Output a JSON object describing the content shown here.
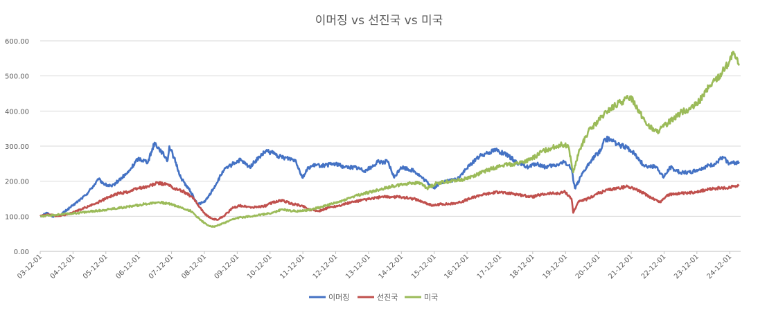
{
  "chart_data": {
    "type": "line",
    "title": "이머징 vs 선진국 vs 미국",
    "xlabel": "",
    "ylabel": "",
    "ylim": [
      0,
      600
    ],
    "y_ticks": [
      "0.00",
      "100.00",
      "200.00",
      "300.00",
      "400.00",
      "500.00",
      "600.00"
    ],
    "x_ticks": [
      "03-12-01",
      "04-12-01",
      "05-12-01",
      "06-12-01",
      "07-12-01",
      "08-12-01",
      "09-12-01",
      "10-12-01",
      "11-12-01",
      "12-12-01",
      "13-12-01",
      "14-12-01",
      "15-12-01",
      "16-12-01",
      "17-12-01",
      "18-12-01",
      "19-12-01",
      "20-12-01",
      "21-12-01",
      "22-12-01",
      "23-12-01",
      "24-12-01"
    ],
    "grid": true,
    "legend_position": "bottom",
    "x_range": [
      2003.917,
      2025.25
    ],
    "series": [
      {
        "name": "이머징",
        "color": "#4472C4",
        "x": [
          2003.92,
          2004.1,
          2004.3,
          2004.5,
          2004.9,
          2005.3,
          2005.7,
          2005.9,
          2006.1,
          2006.4,
          2006.6,
          2006.9,
          2007.2,
          2007.4,
          2007.6,
          2007.8,
          2007.85,
          2008.0,
          2008.2,
          2008.5,
          2008.7,
          2008.9,
          2009.0,
          2009.2,
          2009.5,
          2009.8,
          2010.0,
          2010.3,
          2010.6,
          2010.8,
          2011.0,
          2011.2,
          2011.5,
          2011.7,
          2011.9,
          2012.1,
          2012.3,
          2012.6,
          2012.9,
          2013.2,
          2013.5,
          2013.8,
          2014.0,
          2014.2,
          2014.5,
          2014.7,
          2014.9,
          2015.3,
          2015.6,
          2015.9,
          2016.1,
          2016.3,
          2016.6,
          2016.9,
          2017.2,
          2017.5,
          2017.8,
          2018.0,
          2018.2,
          2018.5,
          2018.8,
          2019.0,
          2019.3,
          2019.6,
          2019.9,
          2020.1,
          2020.2,
          2020.4,
          2020.7,
          2021.0,
          2021.1,
          2021.3,
          2021.5,
          2021.8,
          2022.0,
          2022.3,
          2022.7,
          2022.9,
          2023.1,
          2023.4,
          2023.7,
          2024.0,
          2024.3,
          2024.5,
          2024.7,
          2024.9,
          2025.2
        ],
        "values": [
          100,
          110,
          100,
          102,
          130,
          160,
          205,
          190,
          185,
          210,
          225,
          265,
          255,
          310,
          285,
          260,
          300,
          265,
          210,
          170,
          135,
          140,
          150,
          180,
          230,
          250,
          260,
          240,
          270,
          285,
          280,
          270,
          265,
          260,
          210,
          240,
          245,
          245,
          250,
          240,
          240,
          230,
          240,
          255,
          255,
          210,
          240,
          230,
          205,
          180,
          195,
          200,
          205,
          235,
          265,
          280,
          290,
          280,
          270,
          250,
          240,
          250,
          240,
          245,
          255,
          235,
          180,
          215,
          260,
          290,
          320,
          320,
          305,
          295,
          280,
          245,
          240,
          210,
          240,
          225,
          225,
          235,
          245,
          250,
          270,
          250,
          255
        ]
      },
      {
        "name": "선진국",
        "color": "#C0504D",
        "x": [
          2003.92,
          2004.2,
          2004.4,
          2004.6,
          2004.9,
          2005.3,
          2005.7,
          2006.0,
          2006.3,
          2006.6,
          2006.9,
          2007.2,
          2007.5,
          2007.8,
          2008.0,
          2008.3,
          2008.6,
          2008.9,
          2009.1,
          2009.3,
          2009.5,
          2009.8,
          2010.0,
          2010.4,
          2010.8,
          2011.0,
          2011.3,
          2011.6,
          2011.9,
          2012.1,
          2012.4,
          2012.7,
          2013.0,
          2013.4,
          2013.7,
          2014.0,
          2014.3,
          2014.6,
          2014.9,
          2015.3,
          2015.6,
          2015.9,
          2016.1,
          2016.4,
          2016.7,
          2017.0,
          2017.3,
          2017.6,
          2017.9,
          2018.1,
          2018.3,
          2018.6,
          2018.9,
          2019.1,
          2019.4,
          2019.7,
          2019.9,
          2020.1,
          2020.15,
          2020.3,
          2020.6,
          2020.9,
          2021.2,
          2021.5,
          2021.8,
          2022.0,
          2022.3,
          2022.6,
          2022.8,
          2023.0,
          2023.3,
          2023.6,
          2023.9,
          2024.2,
          2024.5,
          2024.8,
          2025.0,
          2025.2
        ],
        "values": [
          100,
          105,
          100,
          103,
          110,
          125,
          140,
          155,
          165,
          170,
          180,
          185,
          195,
          190,
          180,
          170,
          150,
          110,
          95,
          90,
          100,
          125,
          130,
          125,
          130,
          140,
          145,
          135,
          130,
          120,
          115,
          125,
          130,
          140,
          145,
          150,
          155,
          155,
          155,
          150,
          140,
          130,
          135,
          135,
          140,
          150,
          160,
          165,
          170,
          165,
          165,
          160,
          155,
          160,
          165,
          165,
          170,
          150,
          110,
          140,
          150,
          165,
          175,
          180,
          185,
          180,
          165,
          150,
          140,
          160,
          165,
          165,
          170,
          175,
          180,
          180,
          185,
          190
        ]
      },
      {
        "name": "미국",
        "color": "#9BBB59",
        "x": [
          2003.92,
          2004.2,
          2004.5,
          2004.9,
          2005.3,
          2005.7,
          2006.0,
          2006.4,
          2006.8,
          2007.1,
          2007.5,
          2007.9,
          2008.2,
          2008.5,
          2008.8,
          2009.0,
          2009.2,
          2009.5,
          2009.9,
          2010.3,
          2010.7,
          2011.0,
          2011.3,
          2011.6,
          2011.9,
          2012.2,
          2012.6,
          2013.0,
          2013.4,
          2013.8,
          2014.2,
          2014.6,
          2014.9,
          2015.2,
          2015.5,
          2015.7,
          2016.0,
          2016.4,
          2016.8,
          2017.1,
          2017.5,
          2017.8,
          2018.0,
          2018.4,
          2018.8,
          2019.0,
          2019.2,
          2019.5,
          2019.8,
          2020.0,
          2020.15,
          2020.35,
          2020.6,
          2020.9,
          2021.2,
          2021.5,
          2021.9,
          2022.1,
          2022.4,
          2022.7,
          2022.9,
          2023.2,
          2023.5,
          2023.8,
          2024.0,
          2024.3,
          2024.6,
          2024.9,
          2025.0,
          2025.1,
          2025.2
        ],
        "values": [
          100,
          102,
          105,
          108,
          112,
          116,
          120,
          125,
          130,
          135,
          140,
          135,
          125,
          115,
          90,
          75,
          70,
          80,
          95,
          100,
          105,
          110,
          120,
          115,
          115,
          120,
          130,
          140,
          155,
          165,
          175,
          185,
          190,
          195,
          195,
          180,
          195,
          200,
          205,
          215,
          230,
          240,
          245,
          250,
          260,
          270,
          285,
          295,
          305,
          300,
          225,
          290,
          340,
          370,
          400,
          420,
          440,
          410,
          360,
          340,
          355,
          380,
          400,
          410,
          430,
          470,
          500,
          540,
          560,
          550,
          530
        ]
      }
    ]
  }
}
